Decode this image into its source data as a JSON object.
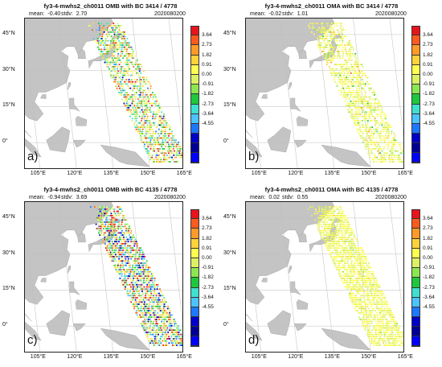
{
  "panels": [
    {
      "title": "fy3-4-mwhs2_ch0011  OMB with BC 3414 / 4778",
      "mean_label": "mean:",
      "mean": "-0.40",
      "stdv_label": "stdv:",
      "stdv": "2.70",
      "date": "2020080200",
      "label": "a)",
      "kind": "omb",
      "density": 0.55,
      "spread": 2.7,
      "bias": -0.4
    },
    {
      "title": "fy3-4-mwhs2_ch0011  OMA with BC 3414 / 4778",
      "mean_label": "mean:",
      "mean": "-0.02",
      "stdv_label": "stdv:",
      "stdv": "1.01",
      "date": "2020080200",
      "label": "b)",
      "kind": "oma",
      "density": 0.55,
      "spread": 1.0,
      "bias": 0.0
    },
    {
      "title": "fy3-4-mwhs2_ch0011  OMB with BC 4135 / 4778",
      "mean_label": "mean:",
      "mean": "-0.94",
      "stdv_label": "stdv:",
      "stdv": "3.69",
      "date": "2020080200",
      "label": "c)",
      "kind": "omb",
      "density": 0.7,
      "spread": 3.5,
      "bias": -0.9
    },
    {
      "title": "fy3-4-mwhs2_ch0011  OMA with BC 4135 / 4778",
      "mean_label": "mean:",
      "mean": "0.02",
      "stdv_label": "stdv:",
      "stdv": "0.55",
      "date": "2020080200",
      "label": "d)",
      "kind": "oma",
      "density": 0.75,
      "spread": 0.5,
      "bias": 0.0
    }
  ],
  "axes": {
    "lat_labels": [
      "45°N",
      "30°N",
      "15°N",
      "0°"
    ],
    "lat_values": [
      45,
      30,
      15,
      0
    ],
    "lon_labels": [
      "105°E",
      "120°E",
      "135°E",
      "150°E",
      "165°E"
    ],
    "lon_values": [
      105,
      120,
      135,
      150,
      165
    ]
  },
  "colorbar": {
    "ticks": [
      "3.64",
      "2.73",
      "1.82",
      "0.91",
      "0.00",
      "-0.91",
      "-1.82",
      "-2.73",
      "-3.64",
      "-4.55"
    ],
    "colors": [
      "#e8141c",
      "#ff5a1e",
      "#ff9a28",
      "#ffd23c",
      "#ffff50",
      "#dcf064",
      "#8ce650",
      "#1ec83c",
      "#40e0d0",
      "#4bc3ff",
      "#1e78ff",
      "#0000c8",
      "#000096",
      "#0000ff"
    ]
  }
}
